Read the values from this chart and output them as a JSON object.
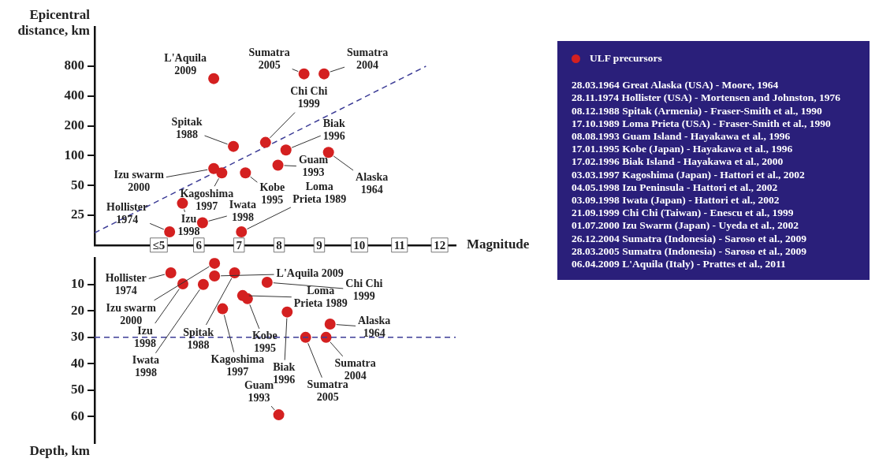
{
  "chart_data": [
    {
      "type": "scatter",
      "ylabel": "Epicentral\ndistance, km",
      "xlabel": "Magnitude",
      "series": [
        {
          "name": "ULF precursors",
          "type": "scatter",
          "color": "#d42020",
          "marker": "circle",
          "x": [
            6.37,
            8.62,
            9.12,
            6.86,
            7.66,
            8.17,
            9.23,
            7.97,
            6.37,
            6.57,
            7.16,
            7.06,
            6.09,
            5.59,
            5.27
          ],
          "values": [
            600,
            670,
            670,
            124,
            136,
            114,
            108,
            80,
            74,
            67,
            67,
            17,
            21,
            33,
            17
          ]
        },
        {
          "type": "line",
          "color": "#3c3c96",
          "line_style": "dashed",
          "marker": "none",
          "x": [
            3.4,
            11.66
          ],
          "values": [
            16.6,
            800
          ]
        }
      ],
      "xlim": [
        3.4,
        12.4
      ],
      "xticks": [
        {
          "value": 5,
          "label": "≤5"
        },
        6,
        7,
        8,
        9,
        10,
        11,
        12
      ],
      "ylim": [
        12.5,
        2000
      ],
      "yticks": [
        25,
        50,
        100,
        200,
        400,
        800
      ],
      "log": "y",
      "grid": false,
      "legend": "right",
      "annotations": [
        {
          "text": "L'Aquila\n2009",
          "x": 6.37,
          "y": 600
        },
        {
          "text": "Sumatra\n2005",
          "x": 8.62,
          "y": 670
        },
        {
          "text": "Sumatra\n2004",
          "x": 9.12,
          "y": 670
        },
        {
          "text": "Spitak\n1988",
          "x": 6.86,
          "y": 124
        },
        {
          "text": "Chi Chi\n1999",
          "x": 7.66,
          "y": 136
        },
        {
          "text": "Biak\n1996",
          "x": 8.17,
          "y": 114
        },
        {
          "text": "Alaska\n1964",
          "x": 9.23,
          "y": 108
        },
        {
          "text": "Guam\n1993",
          "x": 7.97,
          "y": 80
        },
        {
          "text": "Izu swarm\n2000",
          "x": 6.37,
          "y": 74
        },
        {
          "text": "Kagoshima\n1997",
          "x": 6.57,
          "y": 67
        },
        {
          "text": "Kobe\n1995",
          "x": 7.16,
          "y": 67
        },
        {
          "text": "Loma\nPrieta 1989",
          "x": 7.06,
          "y": 17
        },
        {
          "text": "Iwata\n1998",
          "x": 6.09,
          "y": 21
        },
        {
          "text": "Izu\n1998",
          "x": 5.59,
          "y": 33
        },
        {
          "text": "Hollister\n1974",
          "x": 5.27,
          "y": 17
        },
        "28.03.1964 Great Alaska (USA) - Moore, 1964",
        "28.11.1974 Hollister (USA) - Mortensen and Johnston, 1976",
        "08.12.1988 Spitak (Armenia) - Fraser-Smith et al., 1990",
        "17.10.1989 Loma Prieta (USA) - Fraser-Smith et al., 1990",
        "08.08.1993 Guam Island - Hayakawa et al., 1996",
        "17.01.1995 Kobe (Japan) - Hayakawa et al., 1996",
        "17.02.1996 Biak Island - Hayakawa et al., 2000",
        "03.03.1997 Kagoshima (Japan) - Hattori et al., 2002",
        "04.05.1998 Izu Peninsula - Hattori et al., 2002",
        "03.09.1998 Iwata (Japan) - Hattori et al., 2002",
        "21.09.1999 Chi Chi (Taiwan) - Enescu et al., 1999",
        "01.07.2000 Izu Swarm (Japan) - Uyeda et al., 2002",
        "26.12.2004 Sumatra (Indonesia) - Saroso et al., 2009",
        "28.03.2005 Sumatra (Indonesia) - Saroso et al., 2009",
        "06.04.2009 L'Aquila (Italy) - Prattes et al., 2011"
      ]
    },
    {
      "type": "scatter",
      "ylabel": "Depth, km",
      "series": [
        {
          "type": "scatter",
          "color": "#d42020",
          "marker": "circle",
          "x": [
            6.39,
            5.3,
            6.39,
            6.89,
            5.6,
            6.11,
            7.7,
            7.09,
            7.21,
            6.59,
            8.2,
            9.27,
            8.66,
            9.17,
            7.99
          ],
          "values": [
            2,
            5.6,
            6.8,
            5.6,
            9.8,
            10,
            9.2,
            14.2,
            15.4,
            19.2,
            20.4,
            25,
            30,
            30,
            59.3
          ]
        }
      ],
      "xlim": [
        3.4,
        12.4
      ],
      "ylim": [
        70,
        0
      ],
      "yticks": [
        10,
        20,
        30,
        40,
        50,
        60
      ],
      "grid": false,
      "tick_labels": "y",
      "ref_lines": [
        {
          "axis": "y",
          "value": 30,
          "color": "#3c3c96",
          "line_style": "dashed"
        }
      ],
      "annotations": [
        {
          "text": "Izu swarm\n2000",
          "x": 6.39,
          "y": 2
        },
        {
          "text": "Hollister\n1974",
          "x": 5.3,
          "y": 5.6
        },
        {
          "text": "L'Aquila 2009",
          "x": 6.39,
          "y": 6.8
        },
        {
          "text": "Spitak\n1988",
          "x": 6.89,
          "y": 5.6
        },
        {
          "text": "Izu\n1998",
          "x": 5.6,
          "y": 9.8
        },
        {
          "text": "Iwata\n1998",
          "x": 6.11,
          "y": 10
        },
        {
          "text": "Chi Chi\n1999",
          "x": 7.7,
          "y": 9.2
        },
        {
          "text": "Loma\nPrieta 1989",
          "x": 7.09,
          "y": 14.2
        },
        {
          "text": "Kobe\n1995",
          "x": 7.21,
          "y": 15.4
        },
        {
          "text": "Kagoshima\n1997",
          "x": 6.59,
          "y": 19.2
        },
        {
          "text": "Biak\n1996",
          "x": 8.2,
          "y": 20.4
        },
        {
          "text": "Alaska\n1964",
          "x": 9.27,
          "y": 25
        },
        {
          "text": "Sumatra\n2005",
          "x": 8.66,
          "y": 30
        },
        {
          "text": "Sumatra\n2004",
          "x": 9.17,
          "y": 30
        },
        {
          "text": "Guam\n1993",
          "x": 7.99,
          "y": 59.3
        }
      ]
    }
  ]
}
